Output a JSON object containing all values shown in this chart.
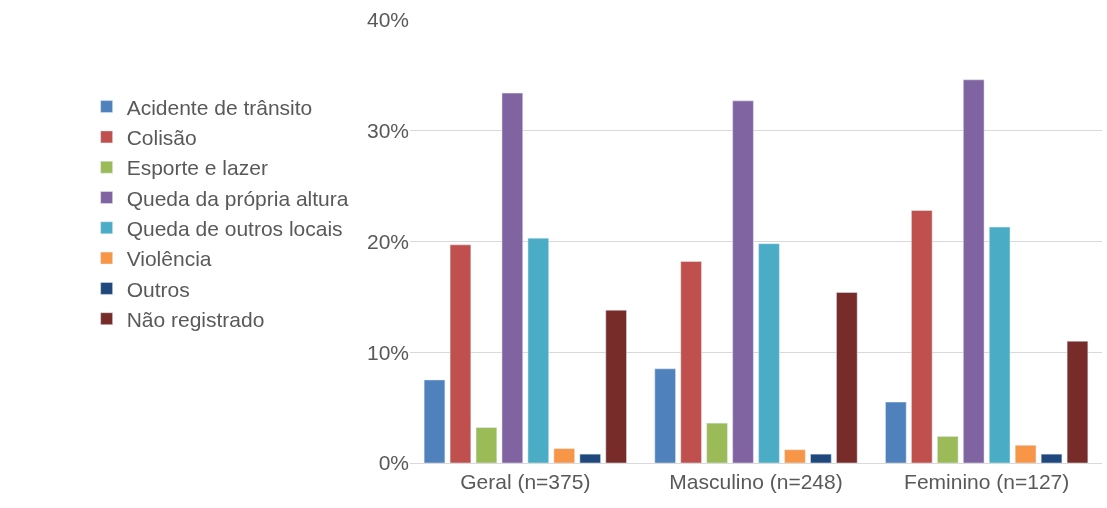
{
  "chart_data": {
    "type": "bar",
    "categories": [
      "Geral (n=375)",
      "Masculino (n=248)",
      "Feminino (n=127)"
    ],
    "series": [
      {
        "name": "Acidente de trânsito",
        "color": "#4f81bd",
        "values": [
          7.5,
          8.5,
          5.5
        ]
      },
      {
        "name": "Colisão",
        "color": "#c0504d",
        "values": [
          19.7,
          18.2,
          22.8
        ]
      },
      {
        "name": "Esporte e lazer",
        "color": "#9bbb59",
        "values": [
          3.2,
          3.6,
          2.4
        ]
      },
      {
        "name": "Queda da própria altura",
        "color": "#8064a2",
        "values": [
          33.4,
          32.7,
          34.6
        ]
      },
      {
        "name": "Queda de outros locais",
        "color": "#4bacc6",
        "values": [
          20.3,
          19.8,
          21.3
        ]
      },
      {
        "name": "Violência",
        "color": "#f79646",
        "values": [
          1.3,
          1.2,
          1.6
        ]
      },
      {
        "name": "Outros",
        "color": "#1f497d",
        "values": [
          0.8,
          0.8,
          0.8
        ]
      },
      {
        "name": "Não registrado",
        "color": "#772c2a",
        "values": [
          13.8,
          15.4,
          11.0
        ]
      }
    ],
    "ylim": [
      0,
      40
    ],
    "yticks": [
      {
        "value": 0,
        "label": "0%"
      },
      {
        "value": 10,
        "label": "10%"
      },
      {
        "value": 20,
        "label": "20%"
      },
      {
        "value": 30,
        "label": "30%"
      },
      {
        "value": 40,
        "label": "40%"
      }
    ],
    "grid": "y",
    "legend": "left"
  }
}
